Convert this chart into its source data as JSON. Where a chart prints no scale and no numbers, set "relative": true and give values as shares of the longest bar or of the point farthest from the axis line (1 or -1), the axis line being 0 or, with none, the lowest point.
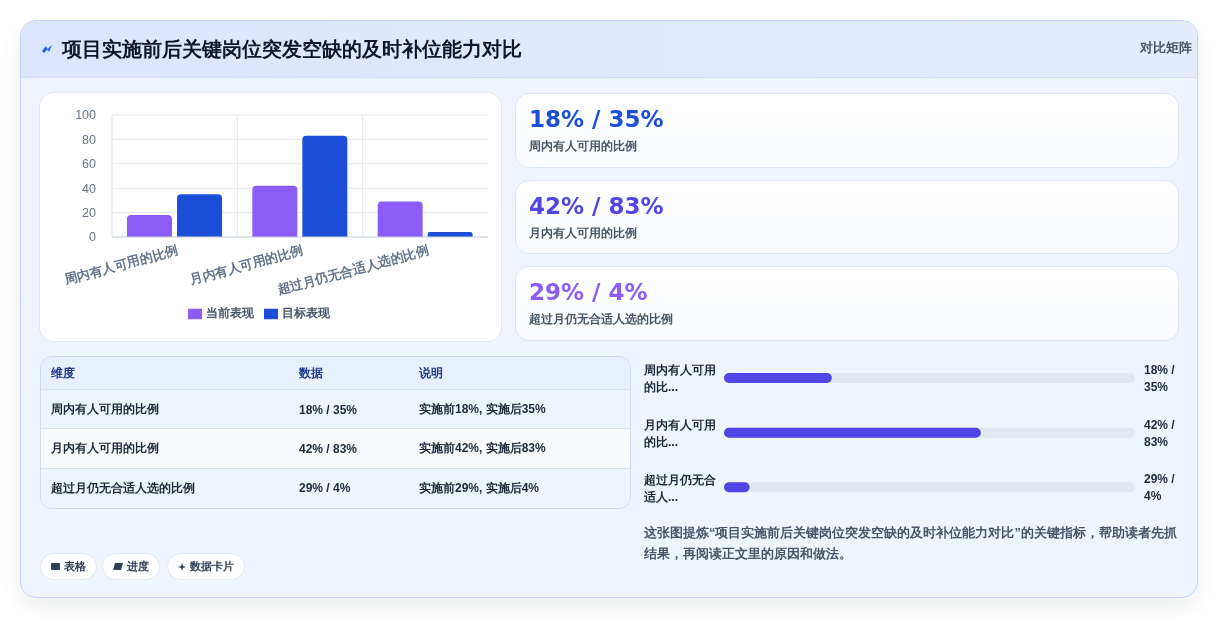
{
  "chart_data": [
    {
      "type": "bar",
      "title": "项目实施前后关键岗位突发空缺的及时补位能力对比",
      "annotations": [
        "对比矩阵",
        "这张图提炼“项目实施前后关键岗位突发空缺的及时补位能力对比”的关键指标，帮助读者先抓结果，再阅读正文里的原因和做法。",
        "表格",
        "进度",
        "数据卡片"
      ],
      "categories": [
        "周内有人可用的比例",
        "月内有人可用的比例",
        "超过月仍无合适人选的比例"
      ],
      "series": [
        {
          "name": "当前表现",
          "color": "#8b5cf6",
          "values": [
            18,
            42,
            29
          ]
        },
        {
          "name": "目标表现",
          "color": "#1d4ed8",
          "values": [
            35,
            83,
            4
          ]
        }
      ],
      "ylim": [
        0,
        100
      ],
      "yticks": [
        0,
        20,
        40,
        60,
        80,
        100
      ],
      "grid": true,
      "legend": "bottom"
    },
    {
      "type": "other",
      "annotations": [
        "18% / 35%",
        "周内有人可用的比例",
        "42% / 83%",
        "月内有人可用的比例",
        "29% / 4%",
        "超过月仍无合适人选的比例"
      ]
    },
    {
      "type": "other",
      "annotations": [
        "维度",
        "数据",
        "说明",
        "周内有人可用的比例",
        "18% / 35%",
        "实施前18%, 实施后35%",
        "月内有人可用的比例",
        "42% / 83%",
        "实施前42%, 实施后83%",
        "超过月仍无合适人选的比例",
        "29% / 4%",
        "实施前29%, 实施后4%"
      ]
    },
    {
      "type": "bar",
      "orientation": "horizontal",
      "relative": true,
      "categories": [
        "周内有人可用的比...",
        "月内有人可用的比...",
        "超过月仍无合适人..."
      ],
      "values": [
        0.42,
        1,
        0.1
      ],
      "color": "#4f46e5",
      "annotations": [
        "18% / 35%",
        "42% / 83%",
        "29% / 4%"
      ]
    }
  ]
}
